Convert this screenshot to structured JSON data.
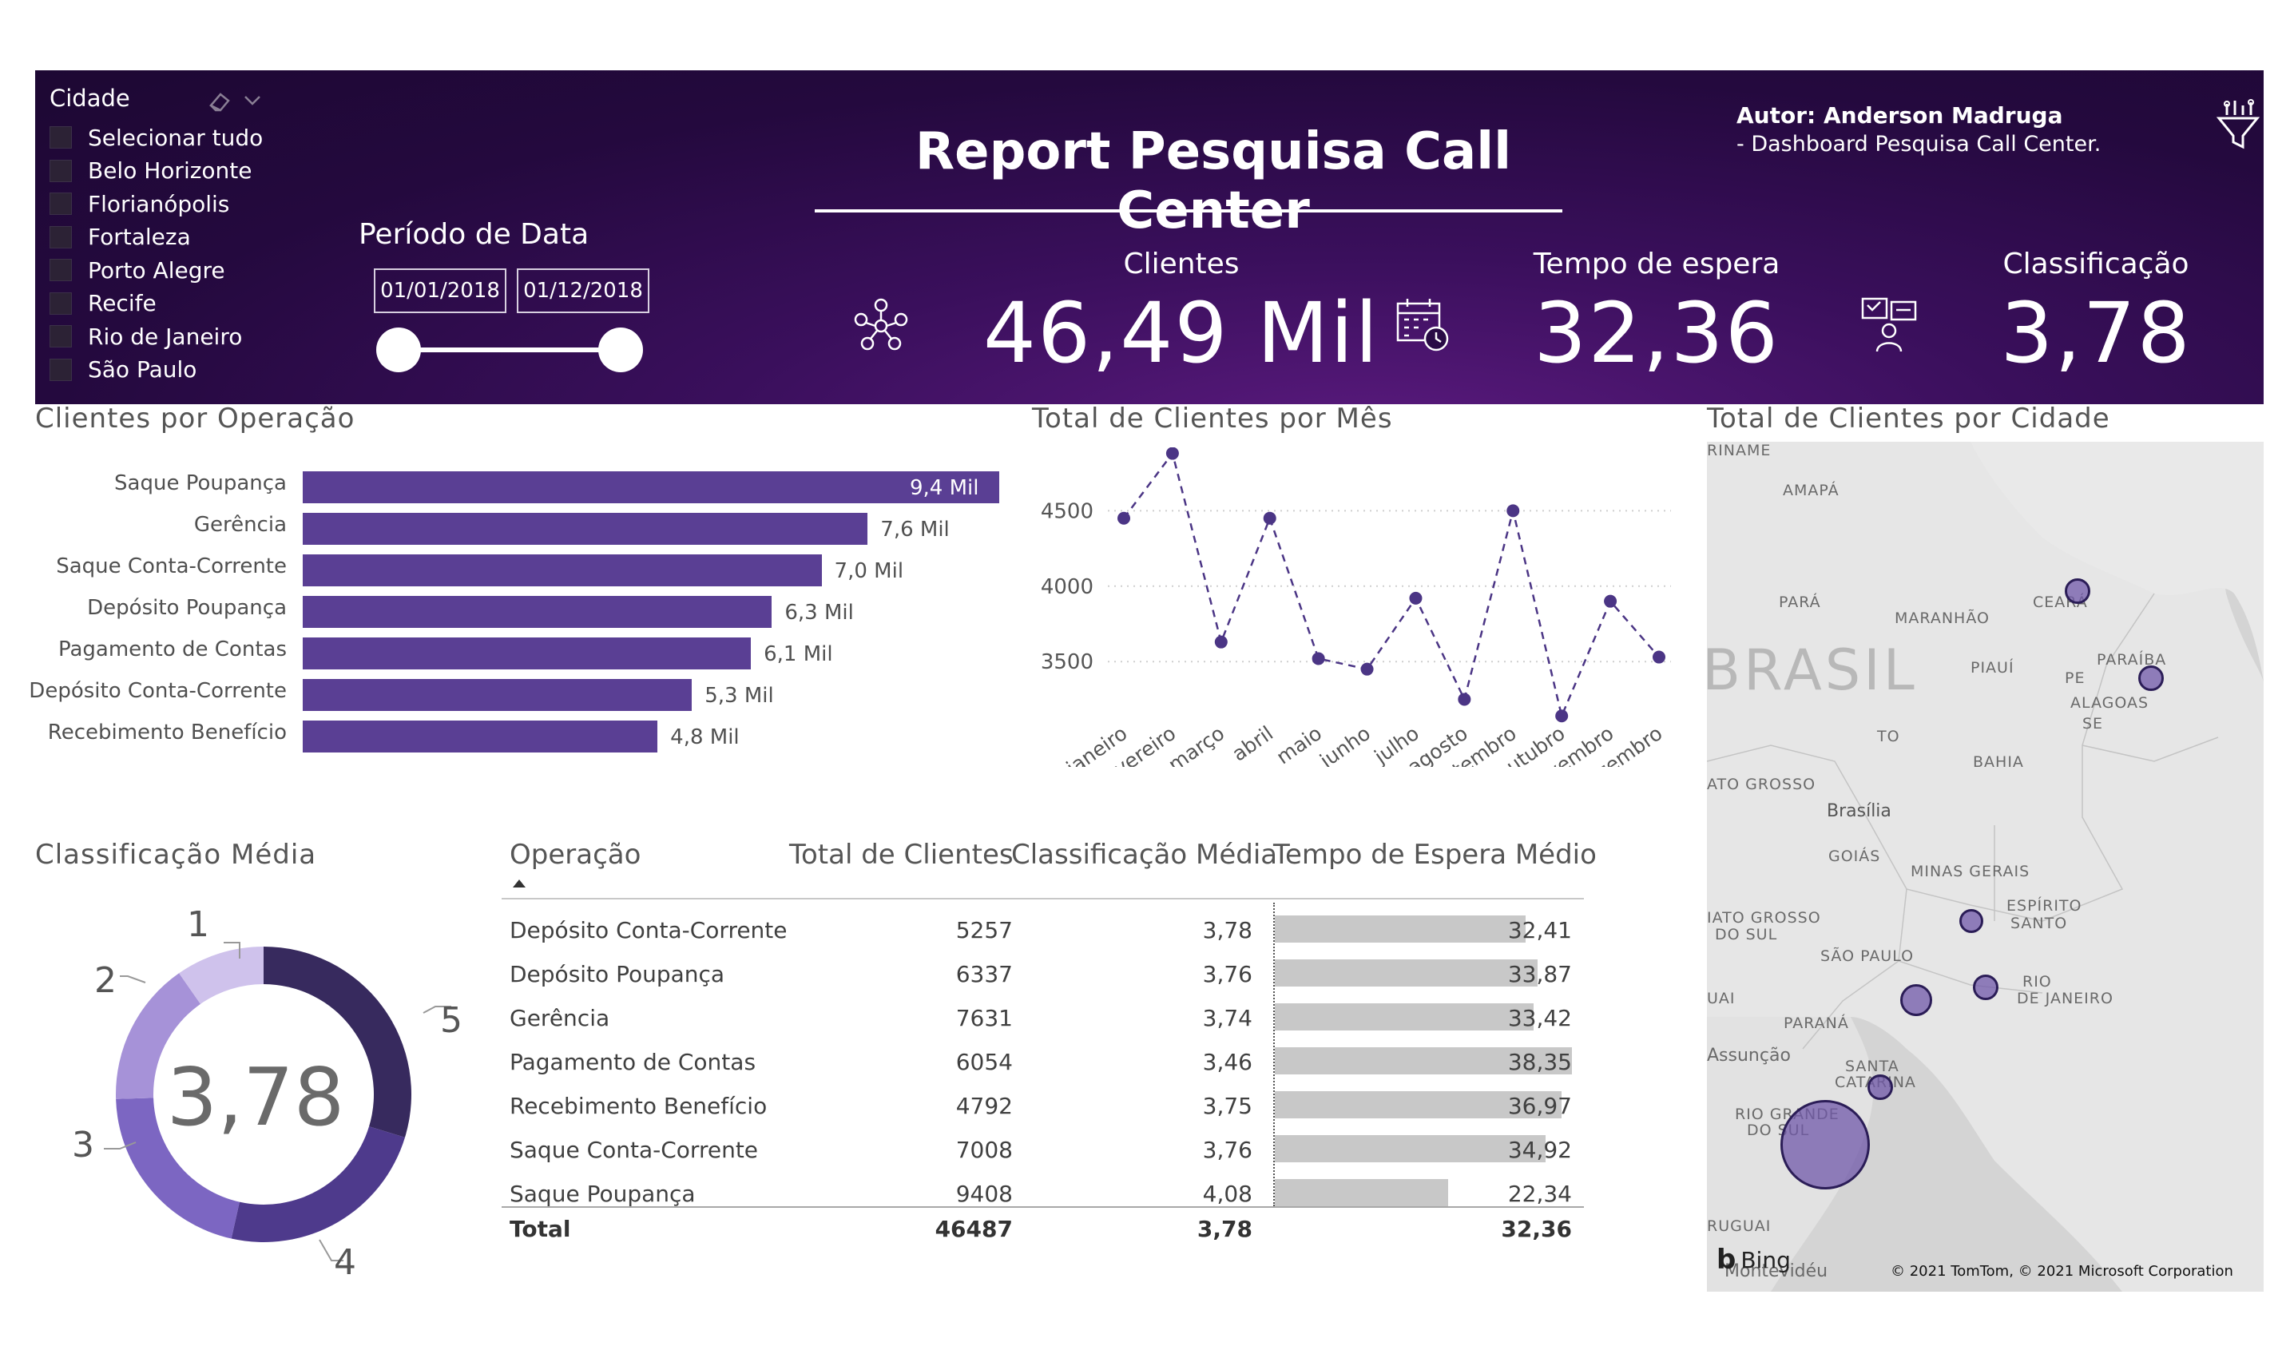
{
  "header": {
    "title": "Report Pesquisa Call Center",
    "author_line1": "Autor: Anderson Madruga",
    "author_line2": "- Dashboard Pesquisa Call Center.",
    "icons": {
      "eraser": "eraser-icon",
      "chevron": "chevron-down-icon",
      "filter": "filter-funnel-icon"
    }
  },
  "city_filter": {
    "title": "Cidade",
    "items": [
      "Selecionar tudo",
      "Belo Horizonte",
      "Florianópolis",
      "Fortaleza",
      "Porto Alegre",
      "Recife",
      "Rio de Janeiro",
      "São Paulo"
    ]
  },
  "date_filter": {
    "title": "Período de Data",
    "start": "01/01/2018",
    "end": "01/12/2018"
  },
  "kpis": [
    {
      "title": "Clientes",
      "value": "46,49 Mil",
      "icon": "people-network-icon"
    },
    {
      "title": "Tempo de espera",
      "value": "32,36",
      "icon": "calendar-clock-icon"
    },
    {
      "title": "Classificação",
      "value": "3,78",
      "icon": "feedback-person-icon"
    }
  ],
  "bar_section": {
    "title": "Clientes por Operação"
  },
  "line_section": {
    "title": "Total de Clientes por Mês"
  },
  "map_section": {
    "title": "Total de Clientes por Cidade",
    "labels": [
      "RINAME",
      "AMAPÁ",
      "PARÁ",
      "MARANHÃO",
      "CEARÁ",
      "BRASIL",
      "PIAUÍ",
      "PARAÍBA",
      "PE",
      "ALAGOAS",
      "SE",
      "TO",
      "BAHIA",
      "ATO GROSSO",
      "Brasília",
      "GOIÁS",
      "MINAS GERAIS",
      "ESPÍRITO",
      "SANTO",
      "IATO GROSSO",
      "DO SUL",
      "SÃO PAULO",
      "RIO",
      "DE JANEIRO",
      "UAI",
      "PARANÁ",
      "Assunção",
      "SANTA",
      "CATARINA",
      "RIO GRANDE",
      "DO SUL",
      "RUGUAI",
      "Montevidéu"
    ],
    "bing": "Bing",
    "copyright": "© 2021 TomTom, © 2021 Microsoft Corporation"
  },
  "donut_section": {
    "title": "Classificação Média",
    "center_value": "3,78",
    "slice_labels": [
      "1",
      "2",
      "3",
      "4",
      "5"
    ]
  },
  "table": {
    "headers": [
      "Operação",
      "Total de Clientes",
      "Classificação Média",
      "Tempo de Espera Médio"
    ],
    "rows": [
      {
        "op": "Depósito Conta-Corrente",
        "total": "5257",
        "class": "3,78",
        "wait": "32,41"
      },
      {
        "op": "Depósito Poupança",
        "total": "6337",
        "class": "3,76",
        "wait": "33,87"
      },
      {
        "op": "Gerência",
        "total": "7631",
        "class": "3,74",
        "wait": "33,42"
      },
      {
        "op": "Pagamento de Contas",
        "total": "6054",
        "class": "3,46",
        "wait": "38,35"
      },
      {
        "op": "Recebimento Benefício",
        "total": "4792",
        "class": "3,75",
        "wait": "36,97"
      },
      {
        "op": "Saque Conta-Corrente",
        "total": "7008",
        "class": "3,76",
        "wait": "34,92"
      },
      {
        "op": "Saque Poupança",
        "total": "9408",
        "class": "4,08",
        "wait": "22,34"
      }
    ],
    "total": {
      "label": "Total",
      "total": "46487",
      "class": "3,78",
      "wait": "32,36"
    }
  },
  "chart_data": [
    {
      "type": "bar",
      "title": "Clientes por Operação",
      "orientation": "horizontal",
      "categories": [
        "Saque Poupança",
        "Gerência",
        "Saque Conta-Corrente",
        "Depósito Poupança",
        "Pagamento de Contas",
        "Depósito Conta-Corrente",
        "Recebimento Benefício"
      ],
      "values": [
        9408,
        7631,
        7008,
        6337,
        6054,
        5257,
        4792
      ],
      "data_labels": [
        "9,4 Mil",
        "7,6 Mil",
        "7,0 Mil",
        "6,3 Mil",
        "6,1 Mil",
        "5,3 Mil",
        "4,8 Mil"
      ],
      "color": "#5a3f94"
    },
    {
      "type": "line",
      "title": "Total de Clientes por Mês",
      "categories": [
        "janeiro",
        "fevereiro",
        "março",
        "abril",
        "maio",
        "junho",
        "julho",
        "agosto",
        "setembro",
        "outubro",
        "novembro",
        "dezembro"
      ],
      "values": [
        4450,
        4880,
        3630,
        4450,
        3520,
        3450,
        3920,
        3250,
        4500,
        3140,
        3900,
        3530
      ],
      "yticks": [
        3500,
        4000,
        4500
      ],
      "ylim": [
        3120,
        4920
      ],
      "grid": true,
      "color": "#4b3585"
    },
    {
      "type": "pie",
      "title": "Classificação Média",
      "categories": [
        "5",
        "4",
        "3",
        "2",
        "1"
      ],
      "values": [
        0.297,
        0.238,
        0.21,
        0.158,
        0.097
      ],
      "colors": [
        "#372a5e",
        "#4e3a8c",
        "#7c66c2",
        "#a692d8",
        "#cfc2ec"
      ]
    },
    {
      "type": "map",
      "title": "Total de Clientes por Cidade",
      "categories": [
        "Fortaleza",
        "Recife",
        "Belo Horizonte",
        "Rio de Janeiro",
        "São Paulo",
        "Florianópolis",
        "Porto Alegre"
      ],
      "values": [
        5200,
        5500,
        4800,
        5600,
        7000,
        5400,
        12900
      ],
      "color": "#7058aa"
    }
  ]
}
